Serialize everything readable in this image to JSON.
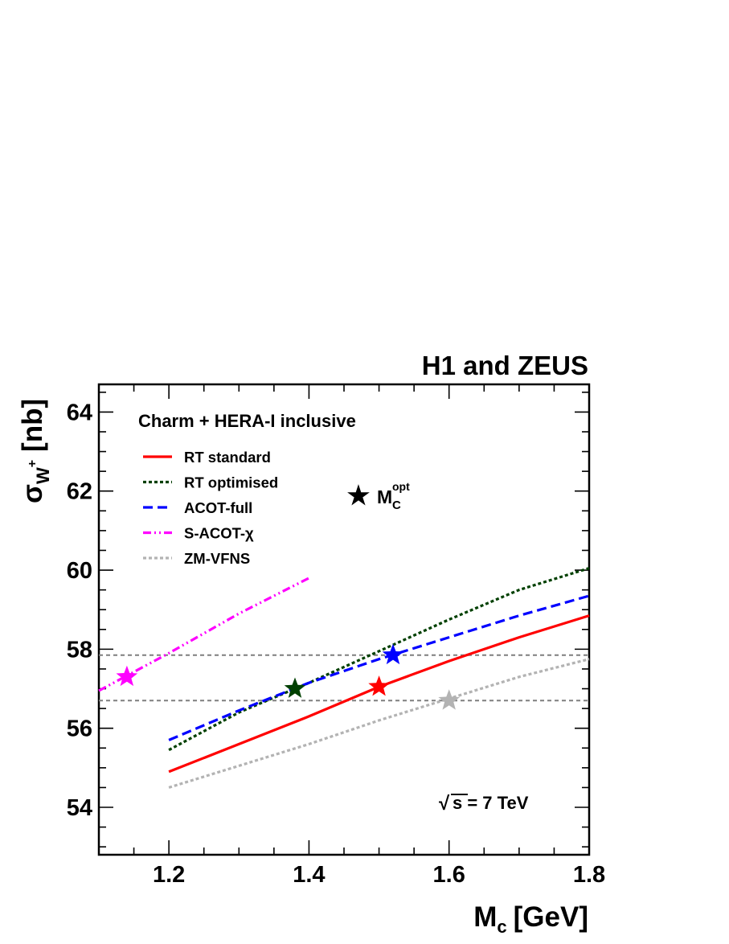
{
  "chart_data": {
    "type": "line",
    "title": "H1 and ZEUS",
    "subtitle": "Charm + HERA-I inclusive",
    "xlabel": "M",
    "xlabel_sub": "c",
    "xlabel_unit": "[GeV]",
    "ylabel": "σ",
    "ylabel_sub": "W",
    "ylabel_sup": "+",
    "ylabel_unit": "[nb]",
    "xlim": [
      1.1,
      1.8
    ],
    "ylim": [
      52.8,
      64.7
    ],
    "xticks": [
      "1.2",
      "1.4",
      "1.6",
      "1.8"
    ],
    "yticks": [
      "54",
      "56",
      "58",
      "60",
      "62",
      "64"
    ],
    "grid": false,
    "legend_position": "top-left",
    "annotation": {
      "root_symbol": "√",
      "text": "s = 7 TeV"
    },
    "marker_legend": {
      "symbol": "★",
      "label": "M",
      "label_sub": "C",
      "label_sup": "opt"
    },
    "reference_lines": [
      {
        "y": 57.85,
        "color": "#7f7f7f",
        "style": "dashed"
      },
      {
        "y": 56.7,
        "color": "#7f7f7f",
        "style": "dashed"
      }
    ],
    "series": [
      {
        "name": "RT standard",
        "color": "#ff0000",
        "style": "solid",
        "x": [
          1.2,
          1.3,
          1.4,
          1.5,
          1.6,
          1.7,
          1.8
        ],
        "y": [
          54.9,
          55.6,
          56.3,
          57.05,
          57.7,
          58.3,
          58.85
        ],
        "optimum": {
          "x": 1.5,
          "y": 57.05
        }
      },
      {
        "name": "RT optimised",
        "color": "#004000",
        "style": "dotted",
        "x": [
          1.2,
          1.3,
          1.4,
          1.5,
          1.6,
          1.7,
          1.8
        ],
        "y": [
          55.45,
          56.4,
          57.15,
          57.95,
          58.75,
          59.5,
          60.05
        ],
        "optimum": {
          "x": 1.38,
          "y": 57.0
        }
      },
      {
        "name": "ACOT-full",
        "color": "#0000ff",
        "style": "dashed",
        "x": [
          1.2,
          1.3,
          1.4,
          1.5,
          1.6,
          1.7,
          1.8
        ],
        "y": [
          55.7,
          56.45,
          57.15,
          57.75,
          58.3,
          58.85,
          59.35
        ],
        "optimum": {
          "x": 1.52,
          "y": 57.85
        }
      },
      {
        "name": "S-ACOT-χ",
        "color": "#ff00ff",
        "style": "dash-dot",
        "x": [
          1.1,
          1.2,
          1.3,
          1.4
        ],
        "y": [
          56.95,
          57.9,
          58.9,
          59.8
        ],
        "optimum": {
          "x": 1.14,
          "y": 57.3
        }
      },
      {
        "name": "ZM-VFNS",
        "color": "#b3b3b3",
        "style": "dotted",
        "x": [
          1.2,
          1.3,
          1.4,
          1.5,
          1.6,
          1.7,
          1.8
        ],
        "y": [
          54.5,
          55.05,
          55.6,
          56.2,
          56.75,
          57.3,
          57.75
        ],
        "optimum": {
          "x": 1.6,
          "y": 56.7
        }
      }
    ]
  }
}
